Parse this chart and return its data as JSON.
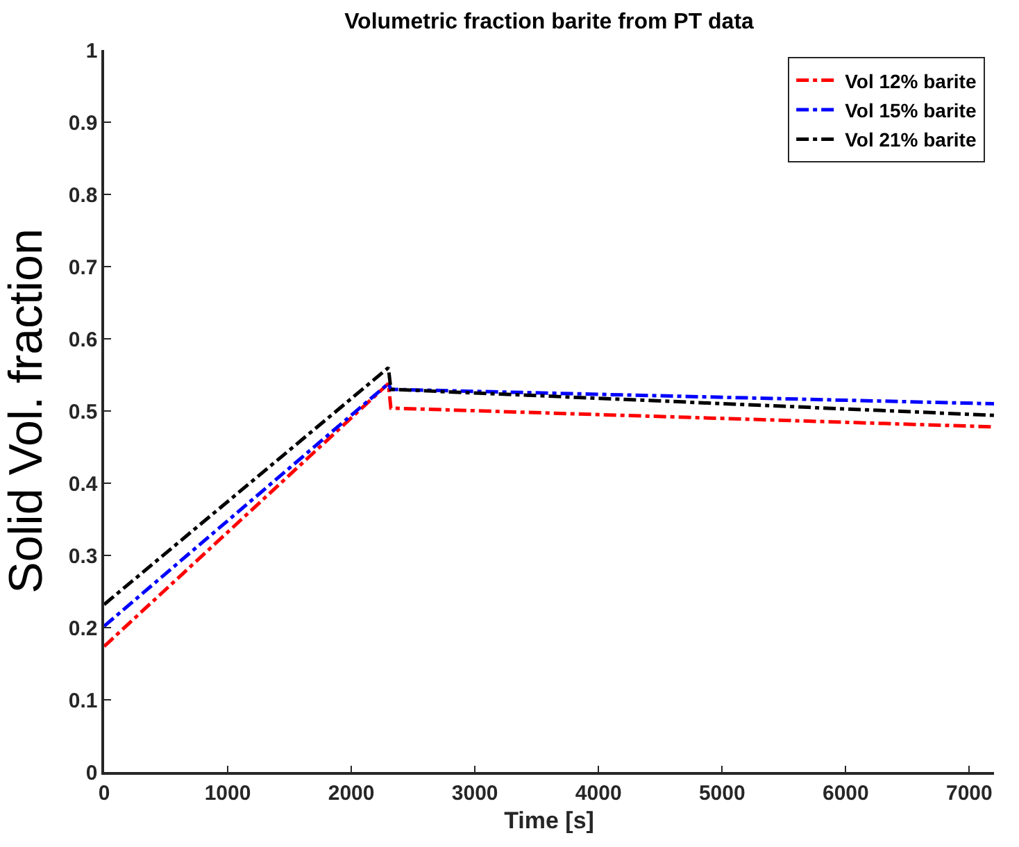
{
  "chart_data": {
    "type": "line",
    "title": "Volumetric fraction barite from PT data",
    "xlabel": "Time [s]",
    "ylabel": "Solid Vol. fraction",
    "series": [
      {
        "name": "Vol 12% barite",
        "color": "#ff0000",
        "x": [
          0,
          2300,
          2320,
          7200
        ],
        "values": [
          0.174,
          0.538,
          0.504,
          0.478
        ]
      },
      {
        "name": "Vol 15% barite",
        "color": "#0000ff",
        "x": [
          0,
          2300,
          2320,
          7200
        ],
        "values": [
          0.202,
          0.538,
          0.53,
          0.51
        ]
      },
      {
        "name": "Vol 21% barite",
        "color": "#000000",
        "x": [
          0,
          2300,
          2320,
          7200
        ],
        "values": [
          0.232,
          0.56,
          0.53,
          0.494
        ]
      }
    ],
    "xlim": [
      0,
      7200
    ],
    "xticks": [
      0,
      1000,
      2000,
      3000,
      4000,
      5000,
      6000,
      7000
    ],
    "ylim": [
      0,
      1
    ],
    "yticks": [
      0,
      0.1,
      0.2,
      0.3,
      0.4,
      0.5,
      0.6,
      0.7,
      0.8,
      0.9,
      1
    ],
    "legend": "top right",
    "marker": "none",
    "line_style": "dashdot"
  }
}
